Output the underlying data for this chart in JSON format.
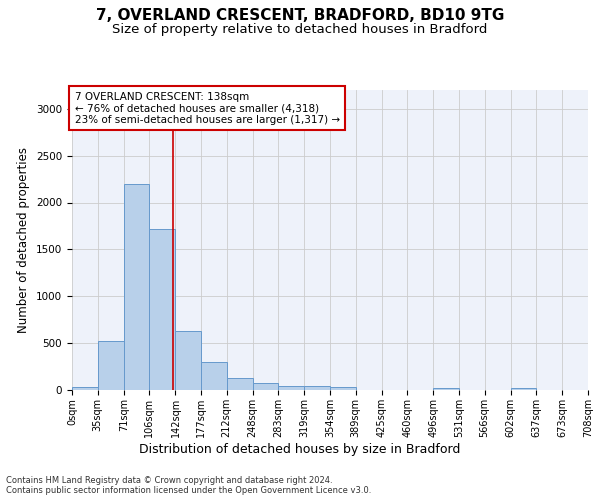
{
  "title1": "7, OVERLAND CRESCENT, BRADFORD, BD10 9TG",
  "title2": "Size of property relative to detached houses in Bradford",
  "xlabel": "Distribution of detached houses by size in Bradford",
  "ylabel": "Number of detached properties",
  "footnote": "Contains HM Land Registry data © Crown copyright and database right 2024.\nContains public sector information licensed under the Open Government Licence v3.0.",
  "bar_edges": [
    0,
    35,
    71,
    106,
    142,
    177,
    212,
    248,
    283,
    319,
    354,
    389,
    425,
    460,
    496,
    531,
    566,
    602,
    637,
    673,
    708
  ],
  "bar_heights": [
    30,
    520,
    2200,
    1720,
    630,
    295,
    130,
    75,
    45,
    40,
    35,
    0,
    0,
    0,
    25,
    0,
    0,
    20,
    0,
    0
  ],
  "bar_color": "#b8d0ea",
  "bar_edgecolor": "#6699cc",
  "vline_x": 138,
  "vline_color": "#cc0000",
  "annotation_text": "7 OVERLAND CRESCENT: 138sqm\n← 76% of detached houses are smaller (4,318)\n23% of semi-detached houses are larger (1,317) →",
  "annotation_box_color": "#cc0000",
  "ylim": [
    0,
    3200
  ],
  "yticks": [
    0,
    500,
    1000,
    1500,
    2000,
    2500,
    3000
  ],
  "grid_color": "#cccccc",
  "bg_color": "#eef2fa",
  "title1_fontsize": 11,
  "title2_fontsize": 9.5,
  "xlabel_fontsize": 9,
  "ylabel_fontsize": 8.5,
  "annotation_fontsize": 7.5,
  "tick_fontsize": 7
}
